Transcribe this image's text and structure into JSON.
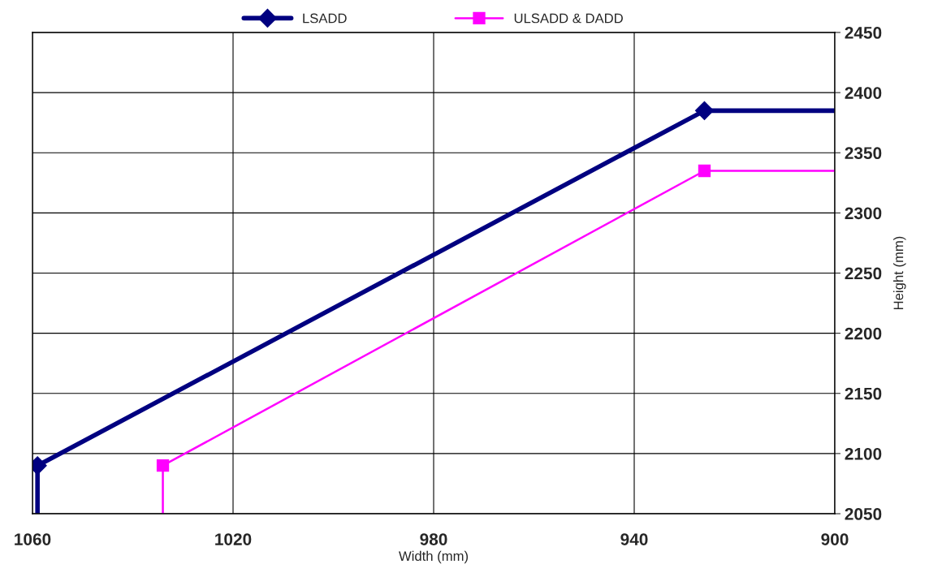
{
  "chart_data": {
    "type": "line",
    "xlabel": "Width (mm)",
    "ylabel": "Height (mm)",
    "xlim": [
      1060,
      900
    ],
    "xticks": [
      1060,
      1020,
      980,
      940,
      900
    ],
    "ylim": [
      2050,
      2450
    ],
    "yticks": [
      2050,
      2100,
      2150,
      2200,
      2250,
      2300,
      2350,
      2400,
      2450
    ],
    "grid": true,
    "legend": "top",
    "series": [
      {
        "name": "LSADD",
        "color": "#000080",
        "marker": "diamond",
        "x": [
          1059,
          1059,
          926,
          900
        ],
        "values": [
          2050,
          2090,
          2385,
          2385
        ]
      },
      {
        "name": "ULSADD & DADD",
        "color": "#ff00ff",
        "marker": "square",
        "x": [
          1034,
          1034,
          926,
          900
        ],
        "values": [
          2050,
          2090,
          2335,
          2335
        ]
      }
    ]
  }
}
